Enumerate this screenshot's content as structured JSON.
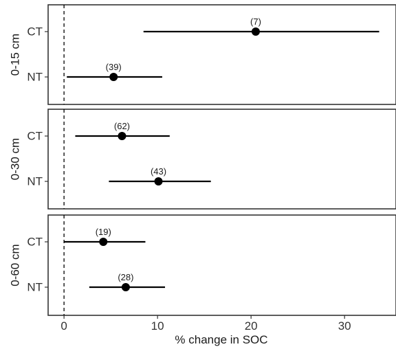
{
  "chart_data": {
    "type": "forest",
    "xlabel": "% change in SOC",
    "ylabel": "",
    "xlim": [
      -1.7,
      35.5
    ],
    "x_ticks": [
      0,
      10,
      20,
      30
    ],
    "x_tick_labels": [
      "0",
      "10",
      "20",
      "30"
    ],
    "reference_line": {
      "x": 0,
      "style": "dashed"
    },
    "grid": false,
    "facets": [
      {
        "label": "0-15 cm",
        "rows": [
          {
            "category": "CT",
            "estimate": 20.5,
            "lower": 8.5,
            "upper": 33.7,
            "n_label": "(7)"
          },
          {
            "category": "NT",
            "estimate": 5.3,
            "lower": 0.3,
            "upper": 10.5,
            "n_label": "(39)"
          }
        ]
      },
      {
        "label": "0-30 cm",
        "rows": [
          {
            "category": "CT",
            "estimate": 6.2,
            "lower": 1.2,
            "upper": 11.3,
            "n_label": "(62)"
          },
          {
            "category": "NT",
            "estimate": 10.1,
            "lower": 4.8,
            "upper": 15.7,
            "n_label": "(43)"
          }
        ]
      },
      {
        "label": "0-60 cm",
        "rows": [
          {
            "category": "CT",
            "estimate": 4.2,
            "lower": 0.0,
            "upper": 8.7,
            "n_label": "(19)"
          },
          {
            "category": "NT",
            "estimate": 6.6,
            "lower": 2.7,
            "upper": 10.8,
            "n_label": "(28)"
          }
        ]
      }
    ]
  }
}
